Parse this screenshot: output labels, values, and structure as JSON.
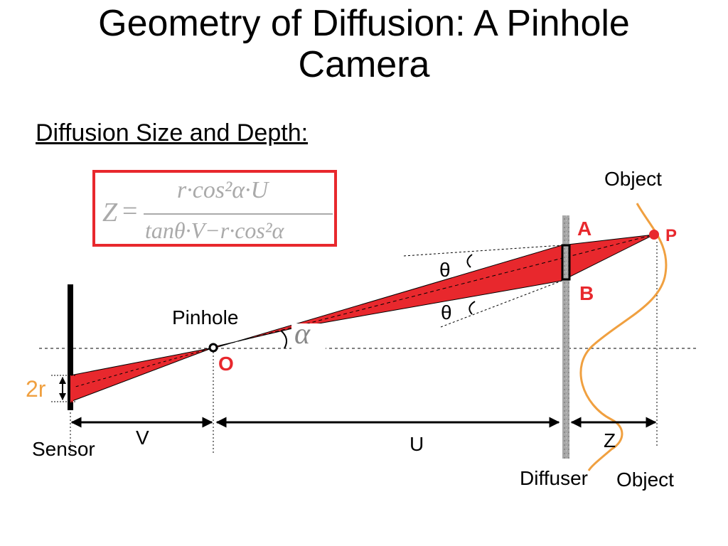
{
  "slide": {
    "title_line1": "Geometry of Diffusion: A Pinhole",
    "title_line2": "Camera",
    "subtitle": "Diffusion Size and Depth:"
  },
  "formula": {
    "lhs": "Z",
    "equals": "=",
    "numerator": "r·cos²α·U",
    "denominator": "tanθ·V−r·cos²α"
  },
  "labels": {
    "object_top": "Object",
    "point_a": "A",
    "point_p": "P",
    "point_b": "B",
    "theta_top": "θ",
    "theta_bottom": "θ",
    "pinhole": "Pinhole",
    "alpha": "α",
    "origin": "O",
    "two_r": "2r",
    "sensor": "Sensor",
    "v": "V",
    "u": "U",
    "z": "Z",
    "diffuser": "Diffuser",
    "object_bottom": "Object"
  },
  "colors": {
    "accent_red": "#e8282d",
    "object_orange": "#f0a040",
    "diffuser_gray": "#a8a8a8"
  }
}
